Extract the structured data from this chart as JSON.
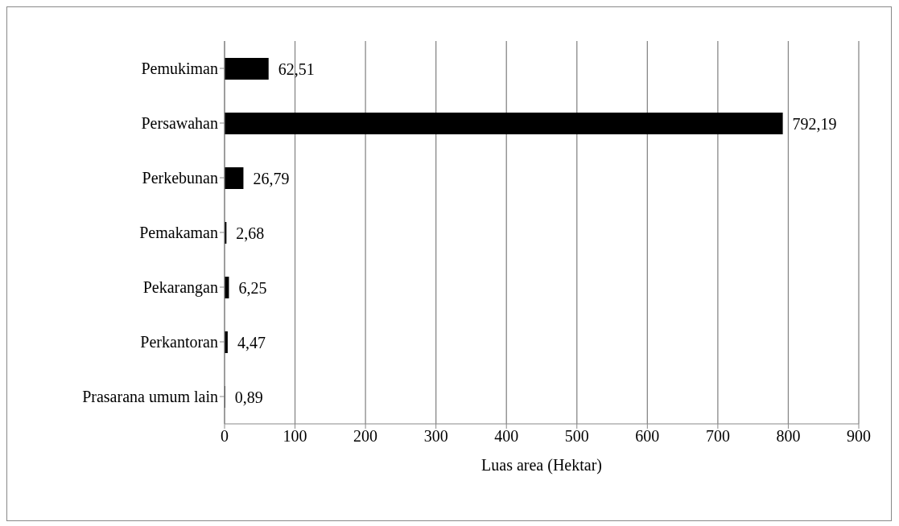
{
  "chart_data": {
    "type": "bar",
    "orientation": "horizontal",
    "xlabel": "Luas area (Hektar)",
    "categories": [
      "Pemukiman",
      "Persawahan",
      "Perkebunan",
      "Pemakaman",
      "Pekarangan",
      "Perkantoran",
      "Prasarana umum lain"
    ],
    "values": [
      62.51,
      792.19,
      26.79,
      2.68,
      6.25,
      4.47,
      0.89
    ],
    "value_labels": [
      "62,51",
      "792,19",
      "26,79",
      "2,68",
      "6,25",
      "4,47",
      "0,89"
    ],
    "color": "#000000",
    "xlim": [
      0,
      900
    ],
    "xticks": [
      0,
      100,
      200,
      300,
      400,
      500,
      600,
      700,
      800,
      900
    ],
    "grid": "x"
  }
}
